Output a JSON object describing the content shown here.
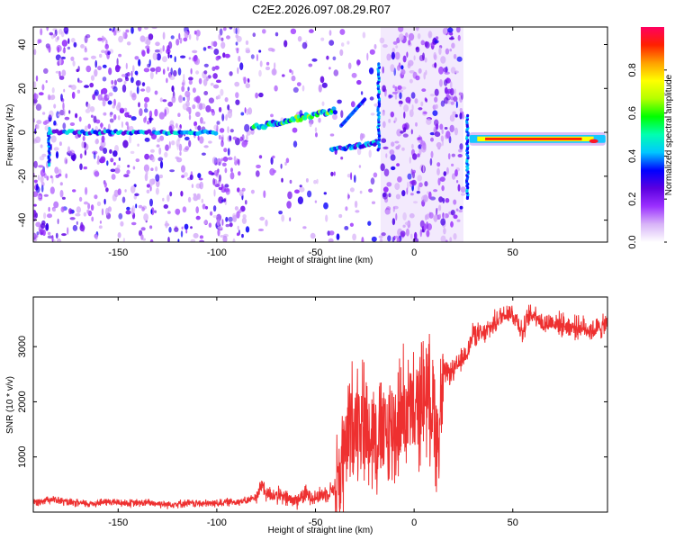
{
  "title": "C2E2.2026.097.08.29.R07",
  "chart_data": [
    {
      "type": "heatmap",
      "name": "spectrogram",
      "xlabel": "Height of straight line (km)",
      "ylabel": "Frequency (Hz)",
      "xlim": [
        -193,
        98
      ],
      "ylim": [
        -50,
        48
      ],
      "xticks": [
        -150,
        -100,
        -50,
        0,
        50
      ],
      "yticks": [
        -40,
        -20,
        0,
        20,
        40
      ],
      "colorbar": {
        "label": "Normalized spectral amplitude",
        "range": [
          0.0,
          1.0
        ],
        "ticks": [
          0.0,
          0.2,
          0.4,
          0.6,
          0.8
        ],
        "tick_labels": [
          "0.0",
          "0.2",
          "0.4",
          "0.6",
          "0.8"
        ],
        "colors": [
          "#ffffff",
          "#d8b4f8",
          "#9b30ff",
          "#5b00e0",
          "#0000ff",
          "#00c8ff",
          "#00ffb0",
          "#00ff00",
          "#b4ff00",
          "#ffff00",
          "#ffa000",
          "#ff2000",
          "#ff0060"
        ]
      },
      "features": {
        "tone_0hz_segments": [
          {
            "x_start": -185,
            "x_end": -100,
            "freq": 0,
            "amplitude": 0.35
          },
          {
            "x_start": 28,
            "x_end": 97,
            "freq": -3,
            "amplitude": 0.85
          }
        ],
        "rising_line": {
          "x_start": -82,
          "x_end": -40,
          "freq_start": 2,
          "freq_end": 10,
          "amplitude": 0.45
        },
        "falling_line": {
          "x_start": -42,
          "x_end": -20,
          "freq_start": -8,
          "freq_end": -5,
          "amplitude": 0.35
        },
        "noisy_region": {
          "x_start": -17,
          "x_end": 25
        },
        "transients": [
          {
            "x": -185,
            "freq_min": -15,
            "freq_max": 2
          },
          {
            "x": -18,
            "freq_min": -8,
            "freq_max": 32
          },
          {
            "x": 27,
            "freq_min": -30,
            "freq_max": 8
          }
        ]
      }
    },
    {
      "type": "line",
      "name": "snr",
      "xlabel": "Height of straight line (km)",
      "ylabel": "SNR (10 * v/v)",
      "xlim": [
        -193,
        98
      ],
      "ylim": [
        0,
        3900
      ],
      "xticks": [
        -150,
        -100,
        -50,
        0,
        50
      ],
      "yticks": [
        1000,
        2000,
        3000
      ],
      "color": "#ee3030",
      "series": [
        {
          "name": "SNR",
          "x": [
            -193,
            -185,
            -175,
            -165,
            -155,
            -145,
            -135,
            -125,
            -115,
            -105,
            -95,
            -85,
            -80,
            -77,
            -75,
            -70,
            -65,
            -60,
            -55,
            -50,
            -45,
            -40,
            -36,
            -32,
            -28,
            -25,
            -22,
            -18,
            -15,
            -12,
            -10,
            -5,
            0,
            5,
            10,
            12,
            15,
            20,
            25,
            28,
            30,
            35,
            40,
            44,
            48,
            52,
            55,
            58,
            62,
            65,
            70,
            75,
            80,
            85,
            90,
            95,
            98
          ],
          "y": [
            170,
            240,
            170,
            150,
            190,
            160,
            170,
            140,
            160,
            150,
            180,
            200,
            280,
            510,
            330,
            310,
            250,
            200,
            330,
            270,
            330,
            450,
            900,
            1600,
            1800,
            1600,
            1500,
            1400,
            1300,
            1500,
            1500,
            1900,
            1700,
            2200,
            1950,
            1200,
            2500,
            2550,
            2800,
            3000,
            3250,
            3200,
            3400,
            3550,
            3650,
            3500,
            3250,
            3550,
            3600,
            3400,
            3450,
            3400,
            3350,
            3350,
            3300,
            3350,
            3400
          ]
        }
      ]
    }
  ]
}
